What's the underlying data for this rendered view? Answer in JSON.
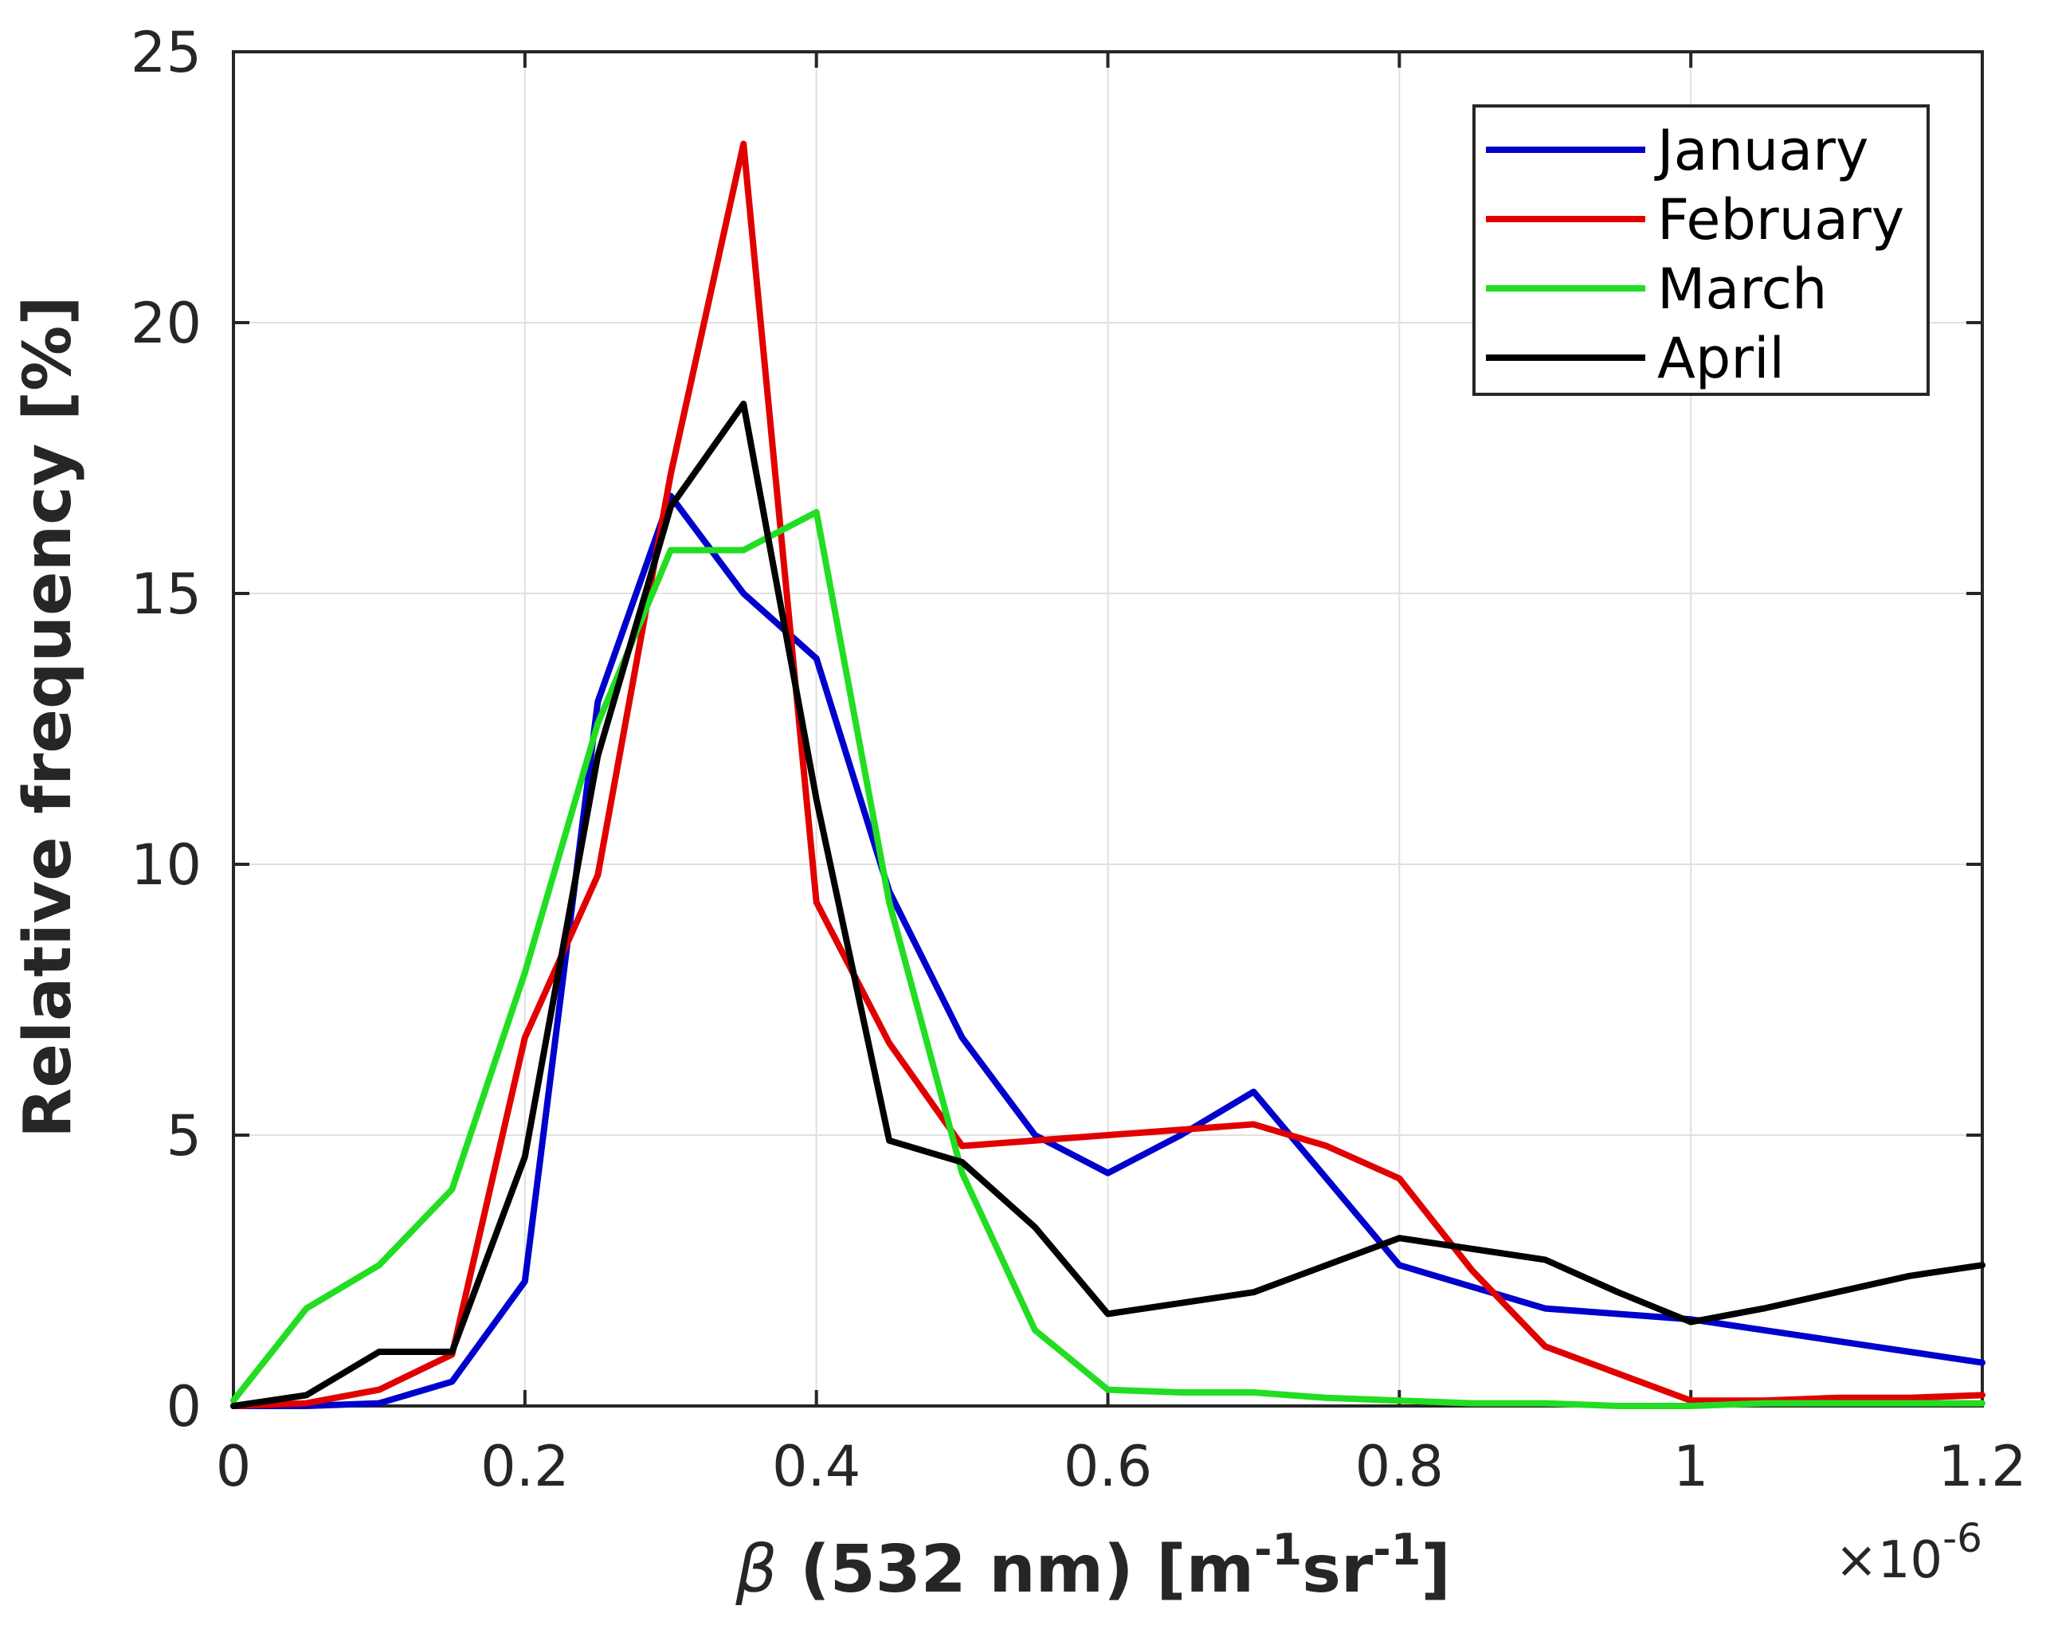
{
  "chart_data": {
    "type": "line",
    "title": "",
    "xlabel": {
      "symbol": "β",
      "main": " (532 nm) [m",
      "sup1": "-1",
      "mid": "sr",
      "sup2": "-1",
      "end": "]"
    },
    "ylabel": "Relative frequency [%]",
    "x_exponent": {
      "base": "×10",
      "power": "-6"
    },
    "xlim": [
      0,
      1.2
    ],
    "ylim": [
      0,
      25
    ],
    "xticks": [
      0,
      0.2,
      0.4,
      0.6,
      0.8,
      1,
      1.2
    ],
    "xtick_labels": [
      "0",
      "0.2",
      "0.4",
      "0.6",
      "0.8",
      "1",
      "1.2"
    ],
    "yticks": [
      0,
      5,
      10,
      15,
      20,
      25
    ],
    "ytick_labels": [
      "0",
      "5",
      "10",
      "15",
      "20",
      "25"
    ],
    "grid": true,
    "legend_position": "top-right",
    "x": [
      0,
      0.05,
      0.1,
      0.15,
      0.2,
      0.25,
      0.3,
      0.35,
      0.4,
      0.45,
      0.5,
      0.55,
      0.6,
      0.65,
      0.7,
      0.75,
      0.8,
      0.85,
      0.9,
      0.95,
      1.0,
      1.05,
      1.1,
      1.15,
      1.2
    ],
    "series": [
      {
        "name": "January",
        "color": "#0000cc",
        "values": [
          0,
          0,
          0.05,
          0.45,
          2.3,
          13.0,
          16.8,
          15.0,
          13.8,
          9.5,
          6.8,
          5.0,
          4.3,
          5.0,
          5.8,
          4.2,
          2.6,
          2.2,
          1.8,
          1.7,
          1.6,
          1.4,
          1.2,
          1.0,
          0.8
        ]
      },
      {
        "name": "February",
        "color": "#e00000",
        "values": [
          0,
          0.05,
          0.3,
          0.95,
          6.8,
          9.8,
          17.2,
          23.3,
          9.3,
          6.7,
          4.8,
          4.9,
          5.0,
          5.1,
          5.2,
          4.8,
          4.2,
          2.5,
          1.1,
          0.6,
          0.1,
          0.1,
          0.15,
          0.15,
          0.2
        ]
      },
      {
        "name": "March",
        "color": "#22dd22",
        "values": [
          0.1,
          1.8,
          2.6,
          4.0,
          8.0,
          12.6,
          15.8,
          15.8,
          16.5,
          9.3,
          4.3,
          1.4,
          0.3,
          0.25,
          0.25,
          0.15,
          0.1,
          0.05,
          0.05,
          0,
          0,
          0.05,
          0.05,
          0.05,
          0.05
        ]
      },
      {
        "name": "April",
        "color": "#000000",
        "values": [
          0,
          0.2,
          1.0,
          1.0,
          4.6,
          12.0,
          16.6,
          18.5,
          11.2,
          4.9,
          4.5,
          3.3,
          1.7,
          1.9,
          2.1,
          2.6,
          3.1,
          2.9,
          2.7,
          2.1,
          1.55,
          1.8,
          2.1,
          2.4,
          2.6
        ]
      }
    ]
  }
}
